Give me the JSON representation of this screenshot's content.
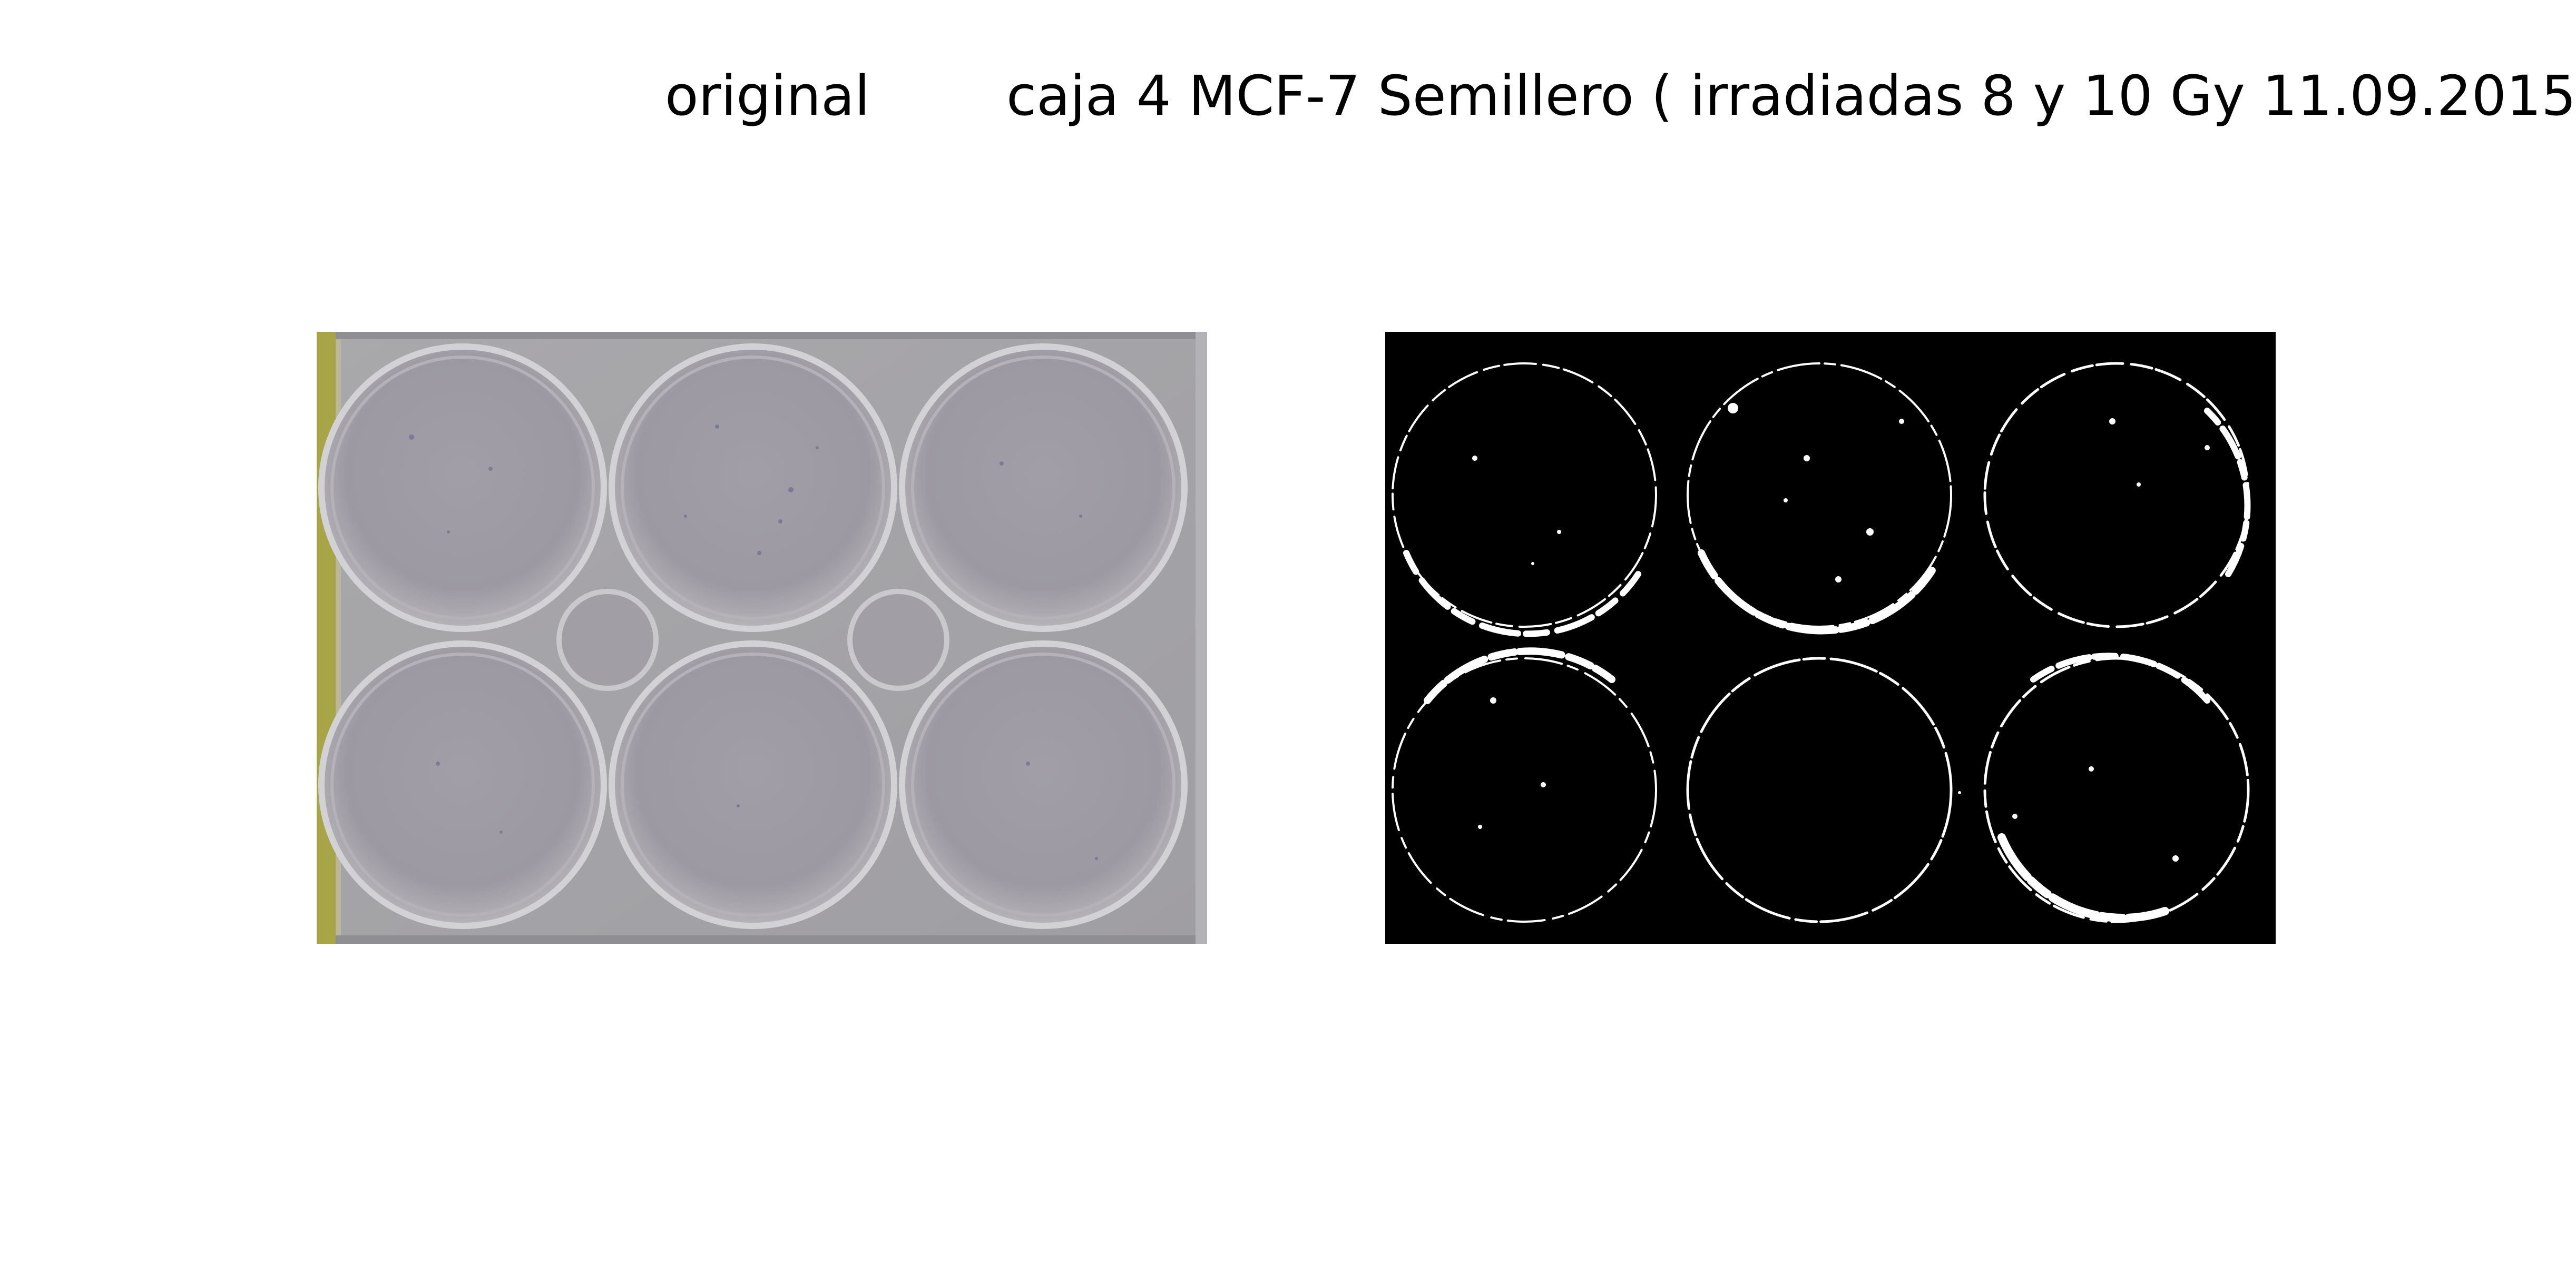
{
  "titles": {
    "left": "original",
    "right": "caja 4 MCF-7 Semillero ( irradiadas 8 y 10 Gy  11.09.2015"
  },
  "panels": [
    {
      "id": "original",
      "content": "photograph of a six-well culture plate"
    },
    {
      "id": "binary",
      "content": "binarized mask of the six wells"
    }
  ],
  "colors": {
    "background": "#ffffff",
    "plate_gray": "#a6a5a8",
    "plate_edge_yellow": "#a8a548",
    "mask_background": "#000000",
    "mask_foreground": "#ffffff"
  }
}
